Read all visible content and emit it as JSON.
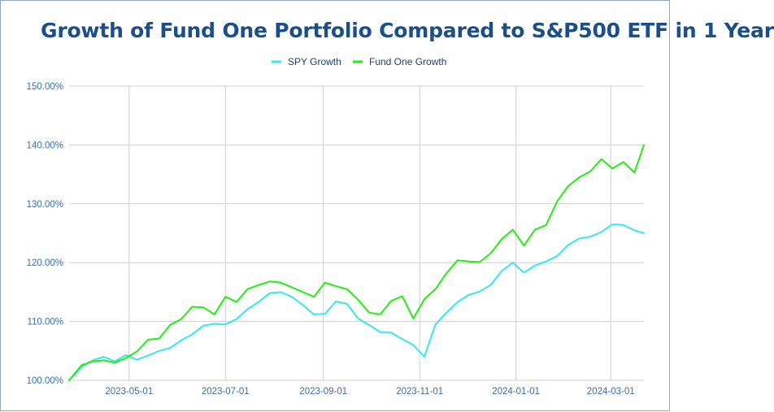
{
  "chart_data": {
    "type": "line",
    "title": "Growth of Fund One Portfolio Compared to S&P500 ETF in 1 Year",
    "xlabel": "",
    "ylabel": "",
    "x_range": [
      "2023-03-24",
      "2024-03-22"
    ],
    "ylim": [
      100,
      150
    ],
    "y_ticks": [
      "100.00%",
      "110.00%",
      "120.00%",
      "130.00%",
      "140.00%",
      "150.00%"
    ],
    "x_ticks": [
      "2023-05-01",
      "2023-07-01",
      "2023-09-01",
      "2023-11-01",
      "2024-01-01",
      "2024-03-01"
    ],
    "grid": true,
    "legend_position": "top-center",
    "series": [
      {
        "name": "SPY Growth",
        "color": "#33e8f0",
        "points": [
          [
            "2023-03-24",
            100.0
          ],
          [
            "2023-04-01",
            102.3
          ],
          [
            "2023-04-08",
            103.4
          ],
          [
            "2023-04-15",
            104.0
          ],
          [
            "2023-04-22",
            103.2
          ],
          [
            "2023-04-29",
            104.3
          ],
          [
            "2023-05-06",
            103.5
          ],
          [
            "2023-05-13",
            104.2
          ],
          [
            "2023-05-20",
            105.0
          ],
          [
            "2023-05-27",
            105.5
          ],
          [
            "2023-06-03",
            106.8
          ],
          [
            "2023-06-10",
            107.8
          ],
          [
            "2023-06-17",
            109.3
          ],
          [
            "2023-06-24",
            109.6
          ],
          [
            "2023-07-01",
            109.5
          ],
          [
            "2023-07-08",
            110.4
          ],
          [
            "2023-07-15",
            112.1
          ],
          [
            "2023-07-22",
            113.3
          ],
          [
            "2023-07-29",
            114.8
          ],
          [
            "2023-08-05",
            115.0
          ],
          [
            "2023-08-12",
            114.2
          ],
          [
            "2023-08-19",
            112.8
          ],
          [
            "2023-08-26",
            111.2
          ],
          [
            "2023-09-02",
            111.3
          ],
          [
            "2023-09-09",
            113.4
          ],
          [
            "2023-09-16",
            113.0
          ],
          [
            "2023-09-23",
            110.5
          ],
          [
            "2023-09-30",
            109.4
          ],
          [
            "2023-10-07",
            108.2
          ],
          [
            "2023-10-14",
            108.1
          ],
          [
            "2023-10-21",
            107.0
          ],
          [
            "2023-10-28",
            106.0
          ],
          [
            "2023-11-04",
            104.0
          ],
          [
            "2023-11-11",
            109.5
          ],
          [
            "2023-11-18",
            111.5
          ],
          [
            "2023-11-25",
            113.3
          ],
          [
            "2023-12-02",
            114.5
          ],
          [
            "2023-12-09",
            115.1
          ],
          [
            "2023-12-16",
            116.2
          ],
          [
            "2023-12-23",
            118.6
          ],
          [
            "2023-12-30",
            120.0
          ],
          [
            "2024-01-06",
            118.3
          ],
          [
            "2024-01-13",
            119.5
          ],
          [
            "2024-01-20",
            120.2
          ],
          [
            "2024-01-27",
            121.1
          ],
          [
            "2024-02-03",
            123.0
          ],
          [
            "2024-02-10",
            124.1
          ],
          [
            "2024-02-17",
            124.4
          ],
          [
            "2024-02-24",
            125.2
          ],
          [
            "2024-03-02",
            126.5
          ],
          [
            "2024-03-09",
            126.4
          ],
          [
            "2024-03-16",
            125.5
          ],
          [
            "2024-03-22",
            125.0
          ]
        ]
      },
      {
        "name": "Fund One Growth",
        "color": "#22ee11",
        "points": [
          [
            "2023-03-24",
            100.0
          ],
          [
            "2023-04-01",
            102.6
          ],
          [
            "2023-04-08",
            103.2
          ],
          [
            "2023-04-15",
            103.4
          ],
          [
            "2023-04-22",
            103.0
          ],
          [
            "2023-04-29",
            103.8
          ],
          [
            "2023-05-06",
            104.9
          ],
          [
            "2023-05-13",
            106.9
          ],
          [
            "2023-05-20",
            107.1
          ],
          [
            "2023-05-27",
            109.4
          ],
          [
            "2023-06-03",
            110.4
          ],
          [
            "2023-06-10",
            112.5
          ],
          [
            "2023-06-17",
            112.4
          ],
          [
            "2023-06-24",
            111.2
          ],
          [
            "2023-07-01",
            114.2
          ],
          [
            "2023-07-08",
            113.3
          ],
          [
            "2023-07-15",
            115.5
          ],
          [
            "2023-07-22",
            116.2
          ],
          [
            "2023-07-29",
            116.8
          ],
          [
            "2023-08-05",
            116.6
          ],
          [
            "2023-08-12",
            115.8
          ],
          [
            "2023-08-19",
            115.0
          ],
          [
            "2023-08-26",
            114.2
          ],
          [
            "2023-09-02",
            116.6
          ],
          [
            "2023-09-09",
            116.0
          ],
          [
            "2023-09-16",
            115.5
          ],
          [
            "2023-09-23",
            113.7
          ],
          [
            "2023-09-30",
            111.5
          ],
          [
            "2023-10-07",
            111.2
          ],
          [
            "2023-10-14",
            113.5
          ],
          [
            "2023-10-21",
            114.3
          ],
          [
            "2023-10-28",
            110.5
          ],
          [
            "2023-11-04",
            113.8
          ],
          [
            "2023-11-11",
            115.5
          ],
          [
            "2023-11-18",
            118.2
          ],
          [
            "2023-11-25",
            120.4
          ],
          [
            "2023-12-02",
            120.2
          ],
          [
            "2023-12-09",
            120.1
          ],
          [
            "2023-12-16",
            121.6
          ],
          [
            "2023-12-23",
            124.0
          ],
          [
            "2023-12-30",
            125.6
          ],
          [
            "2024-01-06",
            122.9
          ],
          [
            "2024-01-13",
            125.6
          ],
          [
            "2024-01-20",
            126.4
          ],
          [
            "2024-01-27",
            130.4
          ],
          [
            "2024-02-03",
            133.0
          ],
          [
            "2024-02-10",
            134.5
          ],
          [
            "2024-02-17",
            135.5
          ],
          [
            "2024-02-24",
            137.6
          ],
          [
            "2024-03-02",
            136.0
          ],
          [
            "2024-03-09",
            137.1
          ],
          [
            "2024-03-16",
            135.3
          ],
          [
            "2024-03-22",
            140.0
          ]
        ]
      }
    ]
  }
}
